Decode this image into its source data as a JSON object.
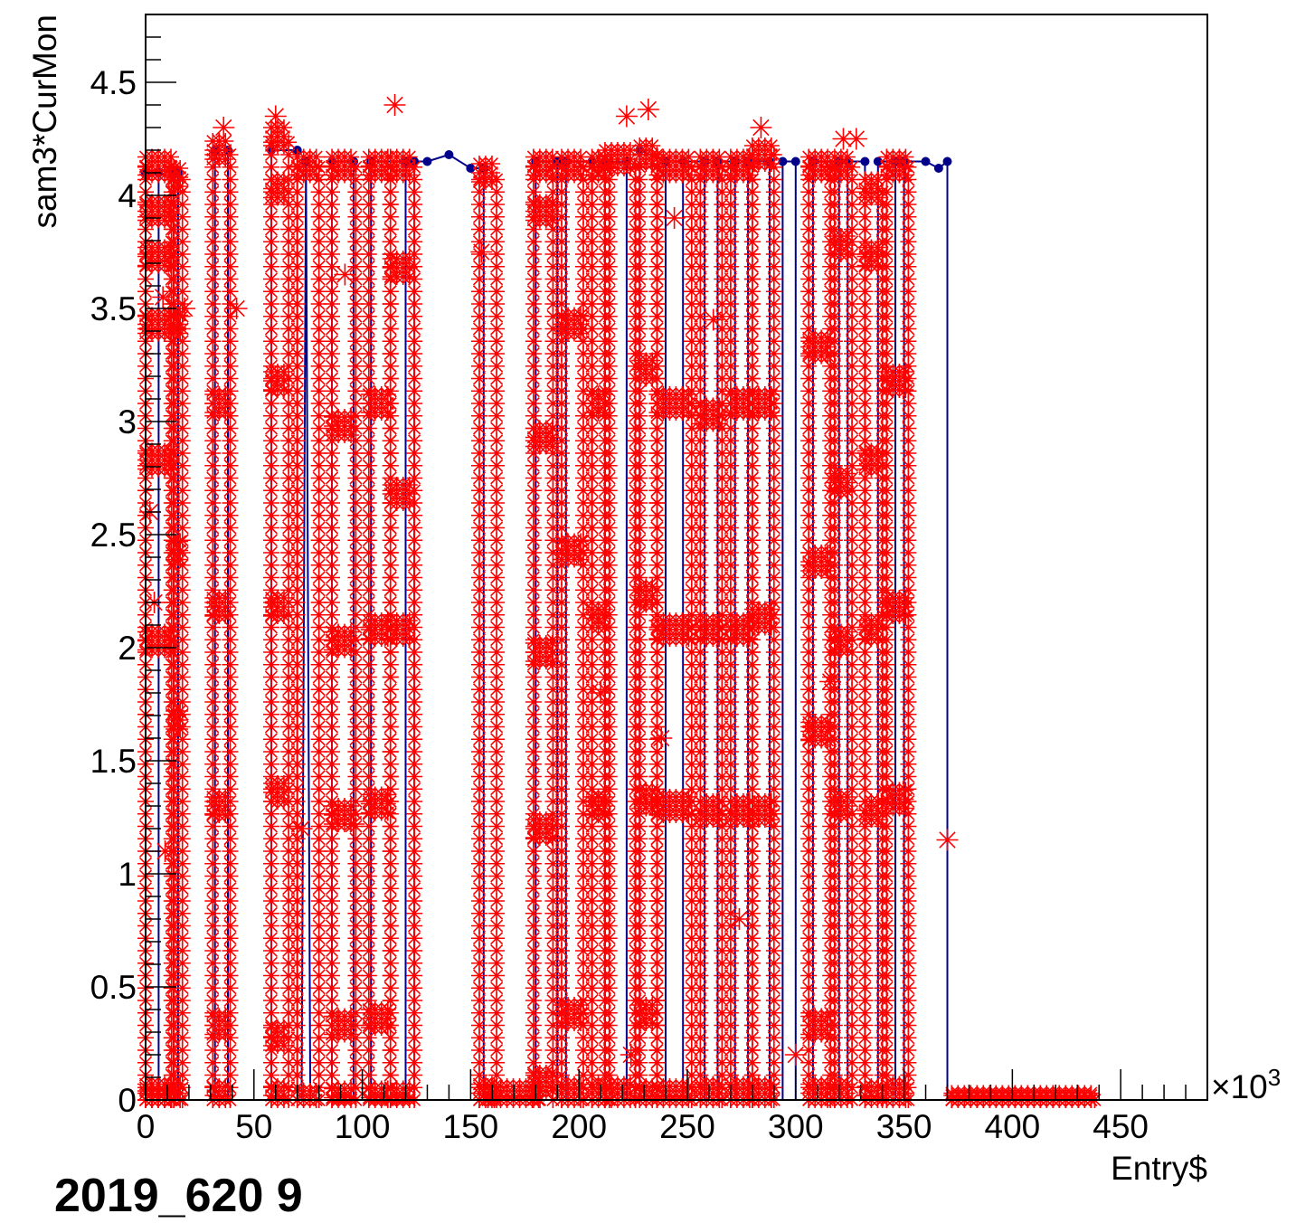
{
  "chart_data": {
    "type": "scatter",
    "xlabel": "Entry$",
    "ylabel": "sam3*CurMon",
    "x_exponent_label": "×10",
    "x_exponent_power": "3",
    "xlim": [
      0,
      490
    ],
    "ylim": [
      0,
      4.8
    ],
    "x_ticks": [
      0,
      50,
      100,
      150,
      200,
      250,
      300,
      350,
      400,
      450
    ],
    "x_tick_labels": [
      "0",
      "50",
      "100",
      "150",
      "200",
      "250",
      "300",
      "350",
      "400",
      "450"
    ],
    "y_ticks": [
      0,
      0.5,
      1,
      1.5,
      2,
      2.5,
      3,
      3.5,
      4,
      4.5
    ],
    "y_tick_labels": [
      "0",
      "0.5",
      "1",
      "1.5",
      "2",
      "2.5",
      "3",
      "3.5",
      "4",
      "4.5"
    ],
    "grid": false,
    "colors": {
      "line": "#00008b",
      "marker": "#ff0000"
    },
    "series": [
      {
        "kind": "line",
        "points": [
          [
            0,
            0
          ],
          [
            0,
            4.1
          ],
          [
            6,
            4.1
          ],
          [
            6,
            0
          ],
          [
            13,
            0
          ],
          [
            13,
            4.1
          ],
          [
            15,
            4.1
          ],
          [
            15,
            0
          ],
          [
            32,
            0
          ],
          [
            32,
            4.2
          ],
          [
            38,
            4.2
          ],
          [
            38,
            0
          ],
          [
            58,
            0
          ],
          [
            58,
            4.2
          ],
          [
            70,
            4.2
          ],
          [
            70,
            0
          ],
          [
            72,
            0
          ],
          [
            74,
            4.15
          ],
          [
            76,
            0
          ],
          [
            86,
            0
          ],
          [
            86,
            4.15
          ],
          [
            96,
            4.15
          ],
          [
            96,
            0
          ],
          [
            104,
            0
          ],
          [
            104,
            4.15
          ],
          [
            120,
            4.15
          ],
          [
            120,
            0
          ],
          [
            124,
            0
          ],
          [
            124,
            4.15
          ],
          [
            130,
            4.15
          ],
          [
            140,
            4.18
          ],
          [
            150,
            4.12
          ],
          [
            156,
            4.12
          ],
          [
            156,
            0
          ],
          [
            180,
            0
          ],
          [
            180,
            4.15
          ],
          [
            190,
            4.15
          ],
          [
            190,
            0
          ],
          [
            194,
            0
          ],
          [
            194,
            4.15
          ],
          [
            206,
            4.15
          ],
          [
            206,
            0
          ],
          [
            212,
            0
          ],
          [
            212,
            4.15
          ],
          [
            222,
            4.15
          ],
          [
            222,
            0
          ],
          [
            228,
            0
          ],
          [
            228,
            4.2
          ],
          [
            240,
            4.15
          ],
          [
            240,
            0
          ],
          [
            248,
            0
          ],
          [
            248,
            4.15
          ],
          [
            258,
            4.15
          ],
          [
            258,
            0
          ],
          [
            264,
            0
          ],
          [
            264,
            4.15
          ],
          [
            272,
            4.15
          ],
          [
            272,
            0
          ],
          [
            278,
            0
          ],
          [
            278,
            4.15
          ],
          [
            288,
            4.15
          ],
          [
            288,
            0
          ],
          [
            294,
            0
          ],
          [
            294,
            4.15
          ],
          [
            300,
            4.15
          ],
          [
            300,
            0
          ],
          [
            308,
            0
          ],
          [
            308,
            4.15
          ],
          [
            320,
            4.15
          ],
          [
            320,
            0
          ],
          [
            324,
            0
          ],
          [
            324,
            4.15
          ],
          [
            332,
            4.15
          ],
          [
            332,
            0
          ],
          [
            338,
            0
          ],
          [
            338,
            4.15
          ],
          [
            346,
            4.15
          ],
          [
            346,
            0
          ],
          [
            350,
            0
          ],
          [
            350,
            4.15
          ],
          [
            360,
            4.15
          ],
          [
            366,
            4.12
          ],
          [
            370,
            4.15
          ],
          [
            370,
            0
          ],
          [
            372,
            0
          ]
        ]
      },
      {
        "kind": "markers",
        "marker": "asterisk",
        "columns": [
          {
            "x": [
              0,
              12
            ],
            "levels": [
              4.15,
              3.95,
              3.75,
              3.45,
              2.85,
              2.05,
              0.05,
              0.02
            ]
          },
          {
            "x": [
              13,
              17
            ],
            "levels": [
              4.1,
              3.45,
              2.45,
              1.7,
              0.05
            ]
          },
          {
            "x": [
              31,
              39
            ],
            "levels": [
              4.22,
              3.1,
              2.2,
              1.32,
              0.35,
              0.04
            ]
          },
          {
            "x": [
              58,
              66
            ],
            "levels": [
              4.28,
              4.05,
              3.2,
              2.2,
              1.38,
              0.3,
              0.04
            ]
          },
          {
            "x": [
              70,
              80
            ],
            "levels": [
              4.15,
              0.02
            ]
          },
          {
            "x": [
              86,
              97
            ],
            "levels": [
              4.15,
              3.0,
              2.05,
              1.28,
              0.35,
              0.03
            ]
          },
          {
            "x": [
              103,
              113
            ],
            "levels": [
              4.15,
              3.1,
              2.1,
              1.33,
              0.38,
              0.03
            ]
          },
          {
            "x": [
              113,
              124
            ],
            "levels": [
              4.15,
              3.7,
              2.7,
              2.1,
              0.03
            ]
          },
          {
            "x": [
              154,
              162
            ],
            "levels": [
              4.12,
              0.05
            ]
          },
          {
            "x": [
              158,
              182
            ],
            "levels": [
              0.04
            ]
          },
          {
            "x": [
              179,
              188
            ],
            "levels": [
              4.15,
              3.95,
              2.95,
              2.0,
              1.22,
              0.1
            ]
          },
          {
            "x": [
              192,
              202
            ],
            "levels": [
              4.15,
              3.45,
              2.45,
              0.4,
              0.05
            ]
          },
          {
            "x": [
              206,
              214
            ],
            "levels": [
              4.15,
              3.1,
              2.15,
              1.32,
              0.05
            ]
          },
          {
            "x": [
              212,
              226
            ],
            "levels": [
              4.18,
              0.05
            ]
          },
          {
            "x": [
              228,
              236
            ],
            "levels": [
              4.2,
              3.25,
              2.25,
              1.35,
              0.4,
              0.04
            ]
          },
          {
            "x": [
              236,
              252
            ],
            "levels": [
              4.15,
              3.1,
              2.1,
              1.32,
              0.04
            ]
          },
          {
            "x": [
              256,
              266
            ],
            "levels": [
              4.15,
              3.05,
              2.1,
              1.3,
              0.05
            ]
          },
          {
            "x": [
              270,
              280
            ],
            "levels": [
              4.15,
              3.1,
              2.1,
              1.3,
              0.05
            ]
          },
          {
            "x": [
              280,
              290
            ],
            "levels": [
              4.2,
              3.1,
              2.15,
              1.3,
              0.05
            ]
          },
          {
            "x": [
              306,
              316
            ],
            "levels": [
              4.15,
              3.35,
              2.4,
              1.65,
              0.35,
              0.05
            ]
          },
          {
            "x": [
              318,
              326
            ],
            "levels": [
              4.15,
              3.8,
              2.75,
              2.05,
              1.32,
              0.05
            ]
          },
          {
            "x": [
              332,
              340
            ],
            "levels": [
              4.05,
              3.75,
              2.85,
              2.1,
              1.3,
              0.04
            ]
          },
          {
            "x": [
              342,
              352
            ],
            "levels": [
              4.15,
              3.2,
              2.2,
              1.35,
              0.05
            ]
          },
          {
            "x": [
              372,
              438
            ],
            "levels": [
              0.01,
              0.0
            ]
          }
        ],
        "outliers": [
          [
            8,
            3.55
          ],
          [
            18,
            3.5
          ],
          [
            36,
            4.3
          ],
          [
            42,
            3.5
          ],
          [
            60,
            4.35
          ],
          [
            72,
            1.2
          ],
          [
            92,
            3.65
          ],
          [
            96,
            1.22
          ],
          [
            115,
            4.4
          ],
          [
            155,
            3.75
          ],
          [
            210,
            1.8
          ],
          [
            222,
            4.35
          ],
          [
            224,
            0.2
          ],
          [
            232,
            4.38
          ],
          [
            238,
            1.6
          ],
          [
            244,
            3.9
          ],
          [
            262,
            3.45
          ],
          [
            274,
            0.8
          ],
          [
            284,
            4.3
          ],
          [
            300,
            0.2
          ],
          [
            316,
            1.85
          ],
          [
            322,
            4.25
          ],
          [
            328,
            4.25
          ],
          [
            370,
            1.15
          ],
          [
            2,
            2.6
          ],
          [
            4,
            2.2
          ],
          [
            9,
            1.1
          ]
        ]
      }
    ]
  },
  "footer": {
    "caption": "2019_620          9"
  }
}
